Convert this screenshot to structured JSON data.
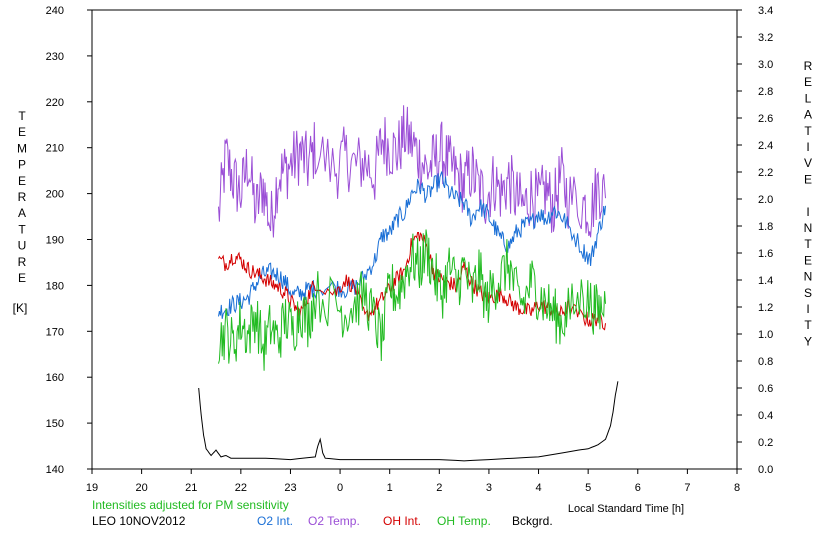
{
  "chart_data": {
    "type": "line",
    "xlabel": "Local Standard Time [h]",
    "left_axis": {
      "title": "TEMPERATURE",
      "unit": "[K]",
      "range": [
        140,
        240
      ],
      "ticks": [
        "140",
        "150",
        "160",
        "170",
        "180",
        "190",
        "200",
        "210",
        "220",
        "230",
        "240"
      ]
    },
    "right_axis": {
      "title": "RELATIVE INTENSITY",
      "range": [
        0.0,
        3.4
      ],
      "ticks": [
        "0.0",
        "0.2",
        "0.4",
        "0.6",
        "0.8",
        "1.0",
        "1.2",
        "1.4",
        "1.6",
        "1.8",
        "2.0",
        "2.2",
        "2.4",
        "2.6",
        "2.8",
        "3.0",
        "3.2",
        "3.4"
      ]
    },
    "x_axis": {
      "range": [
        19,
        32
      ],
      "tick_labels": [
        "19",
        "20",
        "21",
        "22",
        "23",
        "0",
        "1",
        "2",
        "3",
        "4",
        "5",
        "6",
        "7",
        "8"
      ]
    },
    "note": "Intensities adjusted for PM sensitivity",
    "station": "LEO 10NOV2012",
    "legend": [
      {
        "key": "o2int",
        "label": "O2 Int.",
        "color": "#1a6fd6"
      },
      {
        "key": "o2temp",
        "label": "O2 Temp.",
        "color": "#9b4fd6"
      },
      {
        "key": "ohint",
        "label": "OH Int.",
        "color": "#d40000"
      },
      {
        "key": "ohtemp",
        "label": "OH Temp.",
        "color": "#22bb22"
      },
      {
        "key": "bckgrd",
        "label": "Bckgrd.",
        "color": "#000000"
      }
    ],
    "series": [
      {
        "name": "O2 Temp.",
        "key": "o2temp",
        "axis": "left",
        "color": "#9b4fd6",
        "x": [
          21.55,
          21.7,
          21.85,
          22.0,
          22.15,
          22.3,
          22.45,
          22.6,
          22.75,
          22.9,
          23.05,
          23.2,
          23.35,
          23.5,
          23.9,
          24.1,
          24.3,
          24.5,
          24.7,
          24.85,
          25.0,
          25.15,
          25.3,
          25.45,
          25.6,
          25.75,
          25.9,
          26.05,
          26.2,
          26.35,
          26.5,
          26.65,
          26.8,
          26.95,
          27.1,
          27.25,
          27.4,
          27.55,
          27.7,
          27.85,
          28.0,
          28.15,
          28.3,
          28.45,
          28.6,
          28.9,
          29.05,
          29.2,
          29.35
        ],
        "y": [
          195,
          208,
          203,
          200,
          207,
          196,
          202,
          193,
          204,
          205,
          207,
          209,
          206,
          210,
          205,
          208,
          206,
          207,
          204,
          212,
          210,
          209,
          213,
          211,
          208,
          205,
          207,
          209,
          206,
          204,
          202,
          205,
          201,
          199,
          203,
          200,
          203,
          199,
          197,
          200,
          198,
          201,
          197,
          204,
          199,
          198,
          196,
          202,
          199
        ]
      },
      {
        "name": "O2 Int.",
        "key": "o2int",
        "axis": "right",
        "color": "#1a6fd6",
        "x": [
          21.55,
          21.7,
          21.85,
          22.0,
          22.15,
          22.3,
          22.45,
          22.6,
          22.75,
          22.9,
          23.05,
          23.2,
          23.35,
          23.5,
          23.9,
          24.1,
          24.3,
          24.5,
          24.7,
          24.85,
          25.0,
          25.15,
          25.3,
          25.45,
          25.6,
          25.75,
          25.9,
          26.05,
          26.2,
          26.35,
          26.5,
          26.65,
          26.8,
          26.95,
          27.1,
          27.25,
          27.4,
          27.55,
          27.7,
          27.85,
          28.0,
          28.15,
          28.3,
          28.45,
          28.6,
          28.9,
          29.05,
          29.2,
          29.35
        ],
        "y": [
          1.17,
          1.19,
          1.22,
          1.24,
          1.27,
          1.37,
          1.44,
          1.46,
          1.44,
          1.38,
          1.29,
          1.3,
          1.33,
          1.34,
          1.35,
          1.33,
          1.35,
          1.43,
          1.55,
          1.73,
          1.75,
          1.85,
          1.9,
          2.05,
          2.1,
          2.02,
          2.1,
          2.15,
          2.05,
          2.0,
          1.97,
          1.85,
          1.95,
          1.9,
          1.8,
          1.7,
          1.65,
          1.75,
          1.8,
          1.82,
          1.9,
          1.85,
          1.92,
          1.88,
          1.8,
          1.62,
          1.55,
          1.75,
          1.95
        ]
      },
      {
        "name": "OH Int.",
        "key": "ohint",
        "axis": "right",
        "color": "#d40000",
        "x": [
          21.55,
          21.7,
          21.85,
          22.0,
          22.15,
          22.3,
          22.45,
          22.6,
          22.75,
          22.9,
          23.05,
          23.2,
          23.35,
          23.5,
          23.9,
          24.1,
          24.3,
          24.5,
          24.7,
          24.85,
          25.0,
          25.15,
          25.3,
          25.45,
          25.6,
          25.75,
          25.9,
          26.05,
          26.2,
          26.35,
          26.5,
          26.65,
          26.8,
          26.95,
          27.1,
          27.25,
          27.4,
          27.55,
          27.7,
          27.85,
          28.0,
          28.15,
          28.3,
          28.45,
          28.6,
          28.9,
          29.05,
          29.2,
          29.35
        ],
        "y": [
          1.55,
          1.52,
          1.58,
          1.55,
          1.48,
          1.45,
          1.42,
          1.38,
          1.35,
          1.3,
          1.22,
          1.15,
          1.28,
          1.38,
          1.3,
          1.4,
          1.35,
          1.12,
          1.2,
          1.26,
          1.34,
          1.41,
          1.47,
          1.68,
          1.74,
          1.65,
          1.45,
          1.4,
          1.38,
          1.35,
          1.5,
          1.38,
          1.32,
          1.26,
          1.28,
          1.3,
          1.25,
          1.2,
          1.18,
          1.16,
          1.22,
          1.2,
          1.18,
          1.15,
          1.2,
          1.12,
          1.1,
          1.12,
          1.08
        ]
      },
      {
        "name": "OH Temp.",
        "key": "ohtemp",
        "axis": "left",
        "color": "#22bb22",
        "x": [
          21.55,
          21.7,
          21.85,
          22.0,
          22.15,
          22.3,
          22.45,
          22.6,
          22.75,
          22.9,
          23.05,
          23.2,
          23.35,
          23.5,
          23.9,
          24.1,
          24.3,
          24.5,
          24.7,
          24.85,
          25.0,
          25.15,
          25.3,
          25.45,
          25.6,
          25.75,
          25.9,
          26.05,
          26.2,
          26.35,
          26.5,
          26.65,
          26.8,
          26.95,
          27.1,
          27.25,
          27.4,
          27.55,
          27.7,
          27.85,
          28.0,
          28.15,
          28.3,
          28.45,
          28.6,
          28.9,
          29.05,
          29.2,
          29.35
        ],
        "y": [
          168,
          170,
          167,
          172,
          169,
          174,
          166,
          171,
          168,
          173,
          170,
          175,
          172,
          178,
          176,
          174,
          176,
          178,
          172,
          168,
          180,
          178,
          182,
          186,
          184,
          188,
          182,
          178,
          184,
          180,
          184,
          178,
          183,
          176,
          180,
          182,
          185,
          178,
          176,
          181,
          178,
          176,
          174,
          172,
          174,
          178,
          176,
          174,
          176
        ]
      },
      {
        "name": "Bckgrd.",
        "key": "bckgrd",
        "axis": "right",
        "color": "#000000",
        "x": [
          21.15,
          21.2,
          21.25,
          21.3,
          21.4,
          21.5,
          21.6,
          21.7,
          21.8,
          22.0,
          22.5,
          23.0,
          23.5,
          23.55,
          23.6,
          23.65,
          23.7,
          24.0,
          24.5,
          25.0,
          25.5,
          26.0,
          26.5,
          27.0,
          27.5,
          28.0,
          28.5,
          28.8,
          29.0,
          29.2,
          29.35,
          29.45,
          29.5,
          29.55,
          29.6
        ],
        "y": [
          0.6,
          0.4,
          0.25,
          0.15,
          0.1,
          0.14,
          0.09,
          0.1,
          0.08,
          0.08,
          0.08,
          0.07,
          0.09,
          0.17,
          0.22,
          0.12,
          0.08,
          0.07,
          0.07,
          0.07,
          0.07,
          0.07,
          0.06,
          0.07,
          0.08,
          0.09,
          0.12,
          0.14,
          0.15,
          0.18,
          0.22,
          0.32,
          0.42,
          0.55,
          0.65
        ]
      }
    ]
  }
}
